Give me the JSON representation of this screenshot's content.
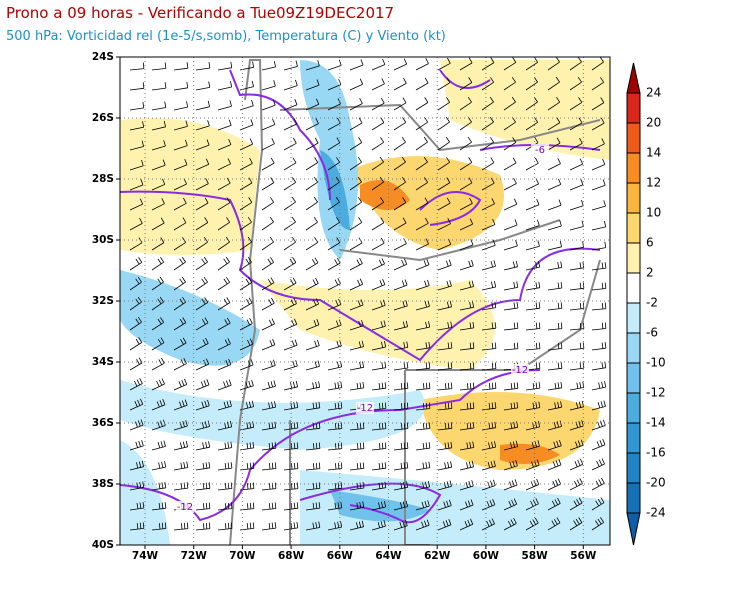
{
  "header": {
    "title": "Prono a 09 horas - Verificando a Tue09Z19DEC2017",
    "subtitle": "500 hPa: Vorticidad rel (1e-5/s,somb), Temperatura (C) y Viento (kt)"
  },
  "map": {
    "lat_labels": [
      "24S",
      "26S",
      "28S",
      "30S",
      "32S",
      "34S",
      "36S",
      "38S",
      "40S"
    ],
    "lon_labels": [
      "74W",
      "72W",
      "70W",
      "68W",
      "66W",
      "64W",
      "62W",
      "60W",
      "58W",
      "56W"
    ],
    "contour_labels": [
      "-6",
      "-12",
      "-12",
      "-12"
    ]
  },
  "colorbar": {
    "levels": [
      24,
      20,
      14,
      12,
      10,
      6,
      2,
      -2,
      -6,
      -10,
      -12,
      -14,
      -16,
      -20,
      -24
    ],
    "colors": [
      "#a00000",
      "#d8261a",
      "#f05a18",
      "#f78c22",
      "#fbb43c",
      "#fcd66e",
      "#fef2ae",
      "#ffffff",
      "#c4ecfa",
      "#98d8f4",
      "#70c2ec",
      "#4cacdf",
      "#3196d2",
      "#2282c6",
      "#1570b8",
      "#0d5ea8"
    ]
  }
}
